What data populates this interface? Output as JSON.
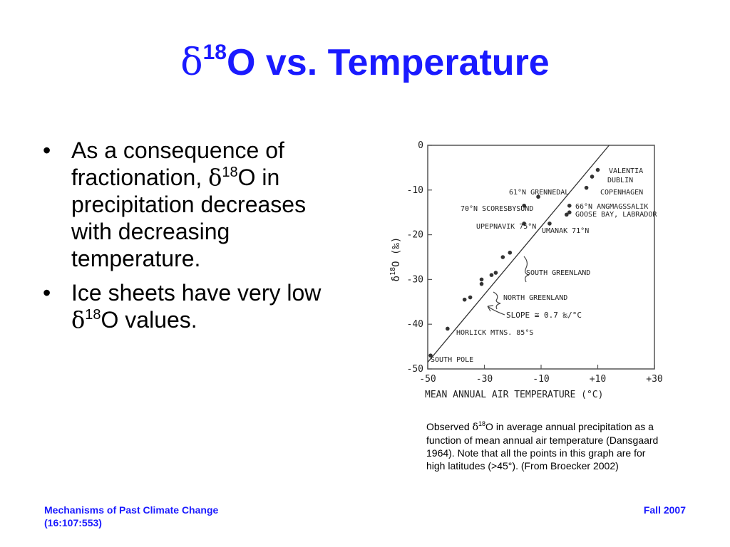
{
  "slide": {
    "title": {
      "symbol": "δ",
      "superscript": "18",
      "text": "O vs. Temperature"
    },
    "bullets": [
      {
        "glyph": "•",
        "part1": "As a consequence of fractionation, ",
        "symbol": "δ",
        "superscript": "18",
        "part2": "O in precipitation decreases with decreasing temperature."
      },
      {
        "glyph": "•",
        "part1": "Ice sheets have very low ",
        "symbol": "δ",
        "superscript": "18",
        "part2": "O values."
      }
    ],
    "caption": {
      "part1": "Observed ",
      "symbol": "δ",
      "superscript": "18",
      "part2": "O in average annual precipitation as a function of mean annual air temperature (Dansgaard 1964). Note that all the points in this graph are for high latitudes (>45°). (From Broecker 2002)"
    },
    "footer": {
      "left_line1": "Mechanisms of Past Climate Change",
      "left_line2": "(16:107:553)",
      "right": "Fall 2007"
    }
  },
  "chart_data": {
    "type": "scatter",
    "xlabel": "MEAN ANNUAL AIR TEMPERATURE (°C)",
    "ylabel_symbol": "δ",
    "ylabel_superscript": "18",
    "ylabel_text": "O (‰)",
    "xlim": [
      -50,
      30
    ],
    "ylim": [
      -50,
      0
    ],
    "x_ticks": [
      -50,
      -30,
      -10,
      10,
      30
    ],
    "x_tick_labels": [
      "-50",
      "-30",
      "-10",
      "+10",
      "+30"
    ],
    "y_ticks": [
      0,
      -10,
      -20,
      -30,
      -40,
      -50
    ],
    "y_tick_labels": [
      "0",
      "-10",
      "-20",
      "-30",
      "-40",
      "-50"
    ],
    "fit_line": {
      "x": [
        -50,
        14
      ],
      "y": [
        -48.5,
        0
      ]
    },
    "slope_label": "SLOPE ≅ 0.7 ‰/°C",
    "points": [
      {
        "x": -49,
        "y": -47,
        "label": "SOUTH POLE"
      },
      {
        "x": -43,
        "y": -41,
        "label": "HORLICK MTNS. 85°S"
      },
      {
        "x": -37,
        "y": -34.5
      },
      {
        "x": -35,
        "y": -34
      },
      {
        "x": -31,
        "y": -31
      },
      {
        "x": -31,
        "y": -30
      },
      {
        "x": -27.5,
        "y": -29
      },
      {
        "x": -26,
        "y": -28.5
      },
      {
        "x": -23.5,
        "y": -25
      },
      {
        "x": -21,
        "y": -24
      },
      {
        "x": -16,
        "y": -13.5,
        "label": "70°N SCORESBYSUND"
      },
      {
        "x": -11,
        "y": -11.5,
        "label": "61°N GRENNEDAL"
      },
      {
        "x": -16,
        "y": -17.5,
        "label": "UPEPNAVIK 75°N"
      },
      {
        "x": -7,
        "y": -17.5,
        "label": "UMANAK 71°N"
      },
      {
        "x": -1,
        "y": -15.5
      },
      {
        "x": 0,
        "y": -13.5,
        "label": "66°N ANGMAGSSALIK"
      },
      {
        "x": 0,
        "y": -15,
        "label": "GOOSE BAY, LABRADOR"
      },
      {
        "x": 6,
        "y": -9.5,
        "label": "COPENHAGEN"
      },
      {
        "x": 8,
        "y": -7,
        "label": "DUBLIN"
      },
      {
        "x": 10,
        "y": -5.5,
        "label": "VALENTIA"
      }
    ],
    "group_labels": [
      "SOUTH GREENLAND",
      "NORTH GREENLAND"
    ]
  }
}
